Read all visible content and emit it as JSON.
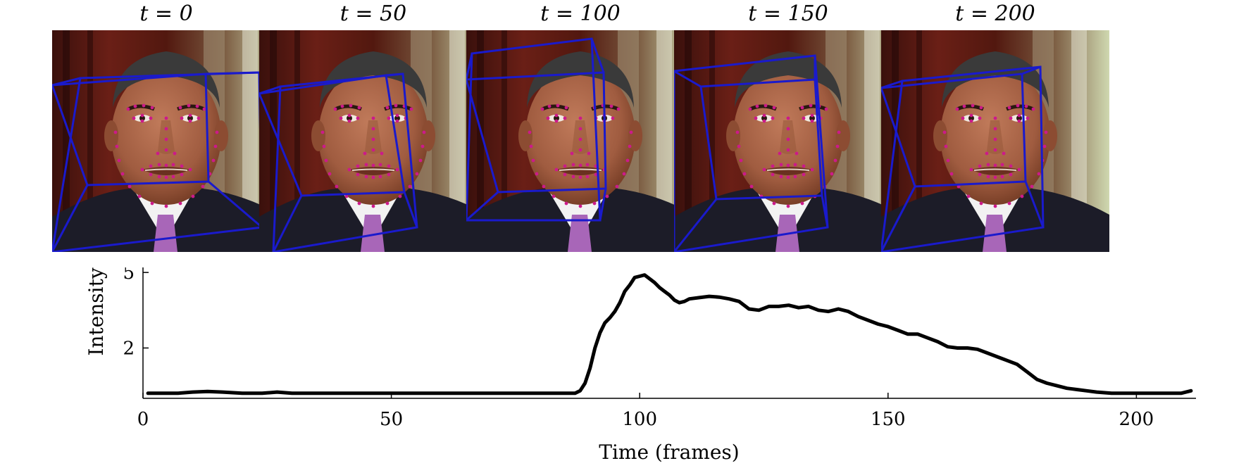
{
  "frames": [
    {
      "label": "t = 0"
    },
    {
      "label": "t = 50"
    },
    {
      "label": "t = 100"
    },
    {
      "label": "t = 150"
    },
    {
      "label": "t = 200"
    }
  ],
  "colors": {
    "bounding_box": "#1a1acc",
    "landmark": "#cc1a8a",
    "curve": "#000000",
    "background_dark": "#4a1510",
    "skin": "#a86548",
    "suit": "#1c1c28",
    "shirt": "#f2f2f2",
    "tie": "#a866b8"
  },
  "chart_data": {
    "type": "line",
    "title": "",
    "xlabel": "Time (frames)",
    "ylabel": "Intensity",
    "xlim": [
      0,
      212
    ],
    "ylim": [
      0,
      5.2
    ],
    "xticks": [
      0,
      50,
      100,
      150,
      200
    ],
    "yticks": [
      2,
      5
    ],
    "grid": false,
    "series": [
      {
        "x": [
          1,
          7,
          10,
          13,
          16,
          20,
          24,
          27,
          30,
          40,
          50,
          60,
          70,
          80,
          85,
          87,
          88,
          89,
          90,
          91,
          92,
          93,
          94,
          95,
          96,
          97,
          98,
          99,
          100,
          101,
          102,
          103,
          104,
          105,
          106,
          107,
          108,
          109,
          110,
          112,
          114,
          116,
          118,
          120,
          122,
          124,
          126,
          128,
          130,
          132,
          134,
          136,
          138,
          140,
          142,
          144,
          146,
          148,
          150,
          152,
          154,
          156,
          158,
          160,
          162,
          164,
          166,
          168,
          170,
          172,
          174,
          176,
          178,
          180,
          182,
          184,
          186,
          188,
          190,
          192,
          195,
          200,
          205,
          209,
          211
        ],
        "y": [
          0.2,
          0.2,
          0.25,
          0.27,
          0.25,
          0.2,
          0.2,
          0.25,
          0.2,
          0.2,
          0.2,
          0.2,
          0.2,
          0.2,
          0.2,
          0.2,
          0.3,
          0.6,
          1.2,
          2.0,
          2.6,
          3.0,
          3.2,
          3.45,
          3.8,
          4.25,
          4.5,
          4.8,
          4.85,
          4.9,
          4.75,
          4.6,
          4.4,
          4.25,
          4.1,
          3.9,
          3.8,
          3.85,
          3.95,
          4.0,
          4.05,
          4.02,
          3.95,
          3.85,
          3.55,
          3.5,
          3.65,
          3.65,
          3.7,
          3.6,
          3.65,
          3.5,
          3.45,
          3.55,
          3.45,
          3.25,
          3.1,
          2.95,
          2.85,
          2.7,
          2.55,
          2.55,
          2.4,
          2.25,
          2.05,
          2.0,
          2.0,
          1.95,
          1.8,
          1.65,
          1.5,
          1.35,
          1.05,
          0.75,
          0.6,
          0.5,
          0.4,
          0.35,
          0.3,
          0.25,
          0.2,
          0.2,
          0.2,
          0.2,
          0.3
        ]
      }
    ]
  }
}
